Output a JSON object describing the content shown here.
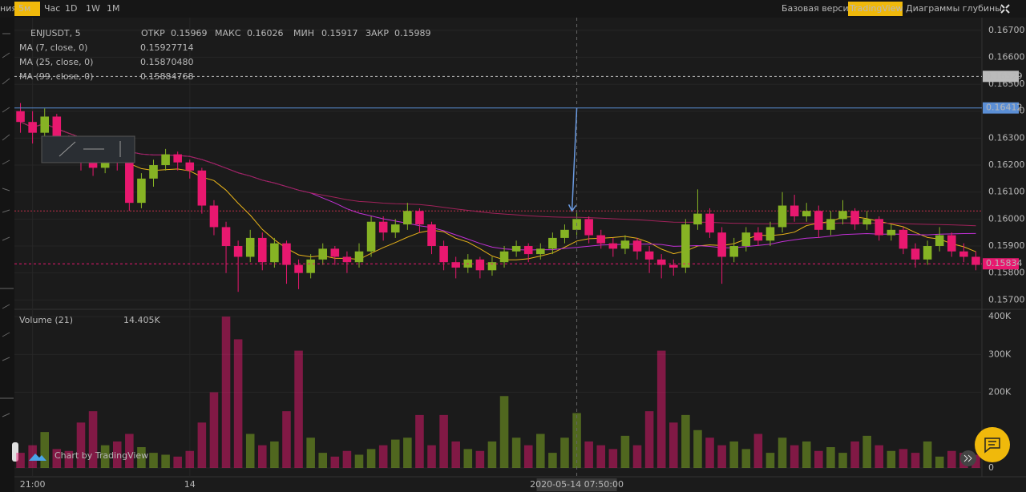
{
  "ui": {
    "toolbar": {
      "cut_label": "ния",
      "intervals": [
        "5м",
        "Час",
        "1D",
        "1W",
        "1M"
      ],
      "views": [
        "Базовая версия",
        "TradingView",
        "Диаграммы глубины"
      ]
    },
    "watermark": "Chart by TradingView"
  },
  "chart_data": {
    "type": "candlestick",
    "symbol": "ENJUSDT, 5",
    "ohlc_labels": [
      "ОТКР",
      "МАКС",
      "МИН",
      "ЗАКР"
    ],
    "ohlc_values": [
      0.15969,
      0.16026,
      0.15917,
      0.15989
    ],
    "up_color": "#86b324",
    "down_color": "#e8186f",
    "ma": [
      {
        "name": "MA (7, close, 0)",
        "period": 7,
        "color": "#e8b31a",
        "value": 0.15927714
      },
      {
        "name": "MA (25, close, 0)",
        "period": 25,
        "color": "#c230d6",
        "value": 0.1587048,
        "value_label": "0.15870480"
      },
      {
        "name": "MA (99, close, 0)",
        "period": 99,
        "color": "#a0225a",
        "value": 0.15884768
      }
    ],
    "candles": [
      [
        0.164,
        0.1643,
        0.1632,
        0.1636
      ],
      [
        0.1636,
        0.164,
        0.1628,
        0.1632
      ],
      [
        0.1632,
        0.1641,
        0.163,
        0.1638
      ],
      [
        0.1638,
        0.1639,
        0.1624,
        0.1628
      ],
      [
        0.1628,
        0.1631,
        0.1621,
        0.1625
      ],
      [
        0.1625,
        0.1628,
        0.1618,
        0.1622
      ],
      [
        0.1622,
        0.1625,
        0.1616,
        0.1619
      ],
      [
        0.1619,
        0.1626,
        0.1617,
        0.1623
      ],
      [
        0.1623,
        0.1626,
        0.1618,
        0.1621
      ],
      [
        0.1621,
        0.1622,
        0.1603,
        0.1606
      ],
      [
        0.1606,
        0.1617,
        0.1604,
        0.1615
      ],
      [
        0.1615,
        0.1622,
        0.1612,
        0.162
      ],
      [
        0.162,
        0.1626,
        0.1618,
        0.1624
      ],
      [
        0.1624,
        0.1625,
        0.1618,
        0.1621
      ],
      [
        0.1621,
        0.1622,
        0.1615,
        0.1618
      ],
      [
        0.1618,
        0.1619,
        0.1602,
        0.1605
      ],
      [
        0.1605,
        0.1607,
        0.1594,
        0.1597
      ],
      [
        0.1597,
        0.1599,
        0.158,
        0.159
      ],
      [
        0.159,
        0.1592,
        0.1573,
        0.1586
      ],
      [
        0.1586,
        0.1596,
        0.1584,
        0.1593
      ],
      [
        0.1593,
        0.1595,
        0.1581,
        0.1584
      ],
      [
        0.1584,
        0.1593,
        0.1582,
        0.1591
      ],
      [
        0.1591,
        0.1592,
        0.1576,
        0.1583
      ],
      [
        0.1583,
        0.1585,
        0.1574,
        0.158
      ],
      [
        0.158,
        0.1587,
        0.1578,
        0.1585
      ],
      [
        0.1585,
        0.1591,
        0.1583,
        0.1589
      ],
      [
        0.1589,
        0.159,
        0.1583,
        0.1586
      ],
      [
        0.1586,
        0.1588,
        0.158,
        0.1584
      ],
      [
        0.1584,
        0.1591,
        0.1582,
        0.1588
      ],
      [
        0.1588,
        0.1601,
        0.1586,
        0.1599
      ],
      [
        0.1599,
        0.1601,
        0.1592,
        0.1595
      ],
      [
        0.1595,
        0.16,
        0.1593,
        0.1598
      ],
      [
        0.1598,
        0.1606,
        0.1596,
        0.1603
      ],
      [
        0.1603,
        0.1604,
        0.1595,
        0.1598
      ],
      [
        0.1598,
        0.1599,
        0.1587,
        0.159
      ],
      [
        0.159,
        0.1592,
        0.1581,
        0.1584
      ],
      [
        0.1584,
        0.1586,
        0.1578,
        0.1582
      ],
      [
        0.1582,
        0.1587,
        0.158,
        0.1585
      ],
      [
        0.1585,
        0.1586,
        0.1578,
        0.1581
      ],
      [
        0.1581,
        0.1586,
        0.1579,
        0.1584
      ],
      [
        0.1584,
        0.159,
        0.1582,
        0.1588
      ],
      [
        0.1588,
        0.1592,
        0.1586,
        0.159
      ],
      [
        0.159,
        0.1591,
        0.1584,
        0.1587
      ],
      [
        0.1587,
        0.1591,
        0.1585,
        0.1589
      ],
      [
        0.1589,
        0.1595,
        0.1587,
        0.1593
      ],
      [
        0.1593,
        0.1598,
        0.1591,
        0.1596
      ],
      [
        0.1596,
        0.1603,
        0.1594,
        0.16
      ],
      [
        0.16,
        0.1601,
        0.1591,
        0.1594
      ],
      [
        0.1594,
        0.1596,
        0.1589,
        0.1591
      ],
      [
        0.1591,
        0.1593,
        0.1586,
        0.1589
      ],
      [
        0.1589,
        0.1594,
        0.1587,
        0.1592
      ],
      [
        0.1592,
        0.1593,
        0.1585,
        0.1588
      ],
      [
        0.1588,
        0.159,
        0.158,
        0.1585
      ],
      [
        0.1585,
        0.1587,
        0.1578,
        0.1583
      ],
      [
        0.1583,
        0.1585,
        0.1579,
        0.1582
      ],
      [
        0.1582,
        0.16,
        0.158,
        0.1598
      ],
      [
        0.1598,
        0.1611,
        0.1596,
        0.1602
      ],
      [
        0.1602,
        0.1604,
        0.1593,
        0.1595
      ],
      [
        0.1595,
        0.1597,
        0.1576,
        0.1586
      ],
      [
        0.1586,
        0.1593,
        0.1584,
        0.159
      ],
      [
        0.159,
        0.1597,
        0.1588,
        0.1595
      ],
      [
        0.1595,
        0.1597,
        0.159,
        0.1592
      ],
      [
        0.1592,
        0.1599,
        0.159,
        0.1597
      ],
      [
        0.1597,
        0.161,
        0.1595,
        0.1605
      ],
      [
        0.1605,
        0.1609,
        0.1599,
        0.1601
      ],
      [
        0.1601,
        0.1606,
        0.1599,
        0.1603
      ],
      [
        0.1603,
        0.1605,
        0.1593,
        0.1596
      ],
      [
        0.1596,
        0.1603,
        0.1594,
        0.16
      ],
      [
        0.16,
        0.1607,
        0.1598,
        0.1603
      ],
      [
        0.1603,
        0.1604,
        0.1596,
        0.1598
      ],
      [
        0.1598,
        0.1603,
        0.1596,
        0.16
      ],
      [
        0.16,
        0.1601,
        0.1592,
        0.1594
      ],
      [
        0.1594,
        0.1598,
        0.1592,
        0.1596
      ],
      [
        0.1596,
        0.1597,
        0.1587,
        0.1589
      ],
      [
        0.1589,
        0.1591,
        0.1582,
        0.1585
      ],
      [
        0.1585,
        0.1592,
        0.1583,
        0.159
      ],
      [
        0.159,
        0.1597,
        0.1588,
        0.1594
      ],
      [
        0.1594,
        0.1595,
        0.1586,
        0.1588
      ],
      [
        0.1588,
        0.1591,
        0.1584,
        0.1586
      ],
      [
        0.1586,
        0.1588,
        0.1581,
        0.1583
      ]
    ],
    "volume_title": "Volume (21)",
    "volume_value": 14405,
    "volume_value_label": "14.405K",
    "volume": [
      40000,
      60000,
      95000,
      50000,
      45000,
      120000,
      150000,
      60000,
      70000,
      90000,
      55000,
      40000,
      35000,
      30000,
      45000,
      120000,
      200000,
      400000,
      340000,
      90000,
      60000,
      70000,
      150000,
      310000,
      80000,
      40000,
      30000,
      45000,
      35000,
      50000,
      60000,
      75000,
      80000,
      140000,
      60000,
      140000,
      70000,
      50000,
      45000,
      70000,
      190000,
      80000,
      60000,
      90000,
      40000,
      80000,
      145000,
      70000,
      60000,
      50000,
      85000,
      60000,
      150000,
      310000,
      120000,
      140000,
      100000,
      80000,
      60000,
      70000,
      50000,
      90000,
      40000,
      80000,
      60000,
      70000,
      45000,
      55000,
      40000,
      70000,
      85000,
      60000,
      45000,
      50000,
      40000,
      70000,
      30000,
      45000,
      40000,
      35000
    ],
    "xlim": [
      -0.5,
      79.5
    ],
    "xticks": [
      {
        "value": 1,
        "label": "21:00"
      },
      14
    ],
    "crosshair": {
      "value": 46,
      "label": "2020-05-14 07:50:00"
    },
    "ylim": [
      0.15695,
      0.16735
    ],
    "yticks": [
      {
        "value": 0.167,
        "label": "0.16700"
      },
      {
        "value": 0.166,
        "label": "0.16600"
      },
      {
        "value": 0.165,
        "label": "0.16500"
      },
      {
        "value": 0.164,
        "label": "0.16400"
      },
      {
        "value": 0.163,
        "label": "0.16300"
      },
      {
        "value": 0.162,
        "label": "0.16200"
      },
      {
        "value": 0.161,
        "label": "0.16100"
      },
      {
        "value": 0.16,
        "label": "0.16000"
      },
      {
        "value": 0.159,
        "label": "0.15900"
      },
      {
        "value": 0.158,
        "label": "0.15800"
      },
      {
        "value": 0.157,
        "label": "0.15700"
      }
    ],
    "vol_ylim": [
      0,
      415000
    ],
    "vol_yticks": [
      {
        "value": 400000,
        "label": "400K"
      },
      {
        "value": 300000,
        "label": "300K"
      },
      {
        "value": 200000,
        "label": "200K"
      },
      0
    ],
    "price_lines": [
      {
        "value": 0.16529,
        "color": "#bbbbbb",
        "dash": true
      },
      {
        "value": 0.16412,
        "color": "#5b8fd6",
        "dash": false
      },
      {
        "value": 0.15834,
        "color": "#e8186f",
        "dash": true
      }
    ],
    "marker_line": 0.1603,
    "grid": true
  }
}
